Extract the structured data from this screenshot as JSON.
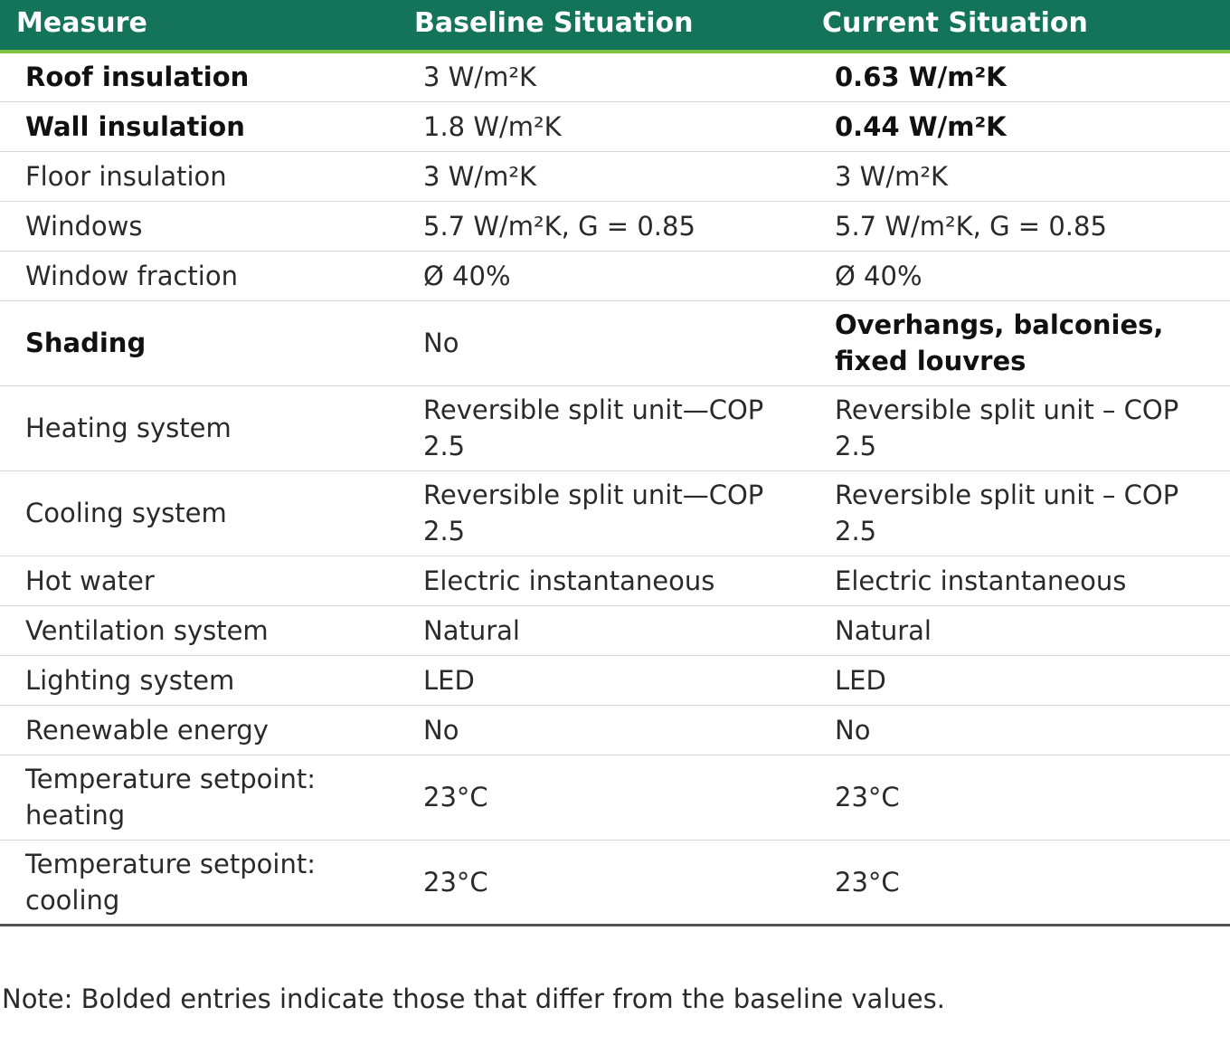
{
  "table": {
    "headers": {
      "measure": "Measure",
      "baseline": "Baseline Situation",
      "current": "Current Situation"
    },
    "rows": [
      {
        "measure": "Roof insulation",
        "baseline": "3 W/m²K",
        "current": "0.63 W/m²K",
        "bold": true
      },
      {
        "measure": "Wall insulation",
        "baseline": "1.8 W/m²K",
        "current": "0.44 W/m²K",
        "bold": true
      },
      {
        "measure": "Floor insulation",
        "baseline": "3 W/m²K",
        "current": "3 W/m²K",
        "bold": false
      },
      {
        "measure": "Windows",
        "baseline": "5.7 W/m²K, G = 0.85",
        "current": "5.7 W/m²K, G = 0.85",
        "bold": false
      },
      {
        "measure": "Window fraction",
        "baseline": "Ø 40%",
        "current": "Ø 40%",
        "bold": false
      },
      {
        "measure": "Shading",
        "baseline": "No",
        "current": "Overhangs, balconies, fixed louvres",
        "bold": true
      },
      {
        "measure": "Heating system",
        "baseline": "Reversible split unit—COP 2.5",
        "current": "Reversible split unit – COP 2.5",
        "bold": false
      },
      {
        "measure": "Cooling system",
        "baseline": "Reversible split unit—COP 2.5",
        "current": "Reversible split unit – COP 2.5",
        "bold": false
      },
      {
        "measure": "Hot water",
        "baseline": "Electric instantaneous",
        "current": "Electric instantaneous",
        "bold": false
      },
      {
        "measure": "Ventilation system",
        "baseline": "Natural",
        "current": "Natural",
        "bold": false
      },
      {
        "measure": "Lighting system",
        "baseline": "LED",
        "current": "LED",
        "bold": false
      },
      {
        "measure": "Renewable energy",
        "baseline": "No",
        "current": "No",
        "bold": false
      },
      {
        "measure": "Temperature setpoint: heating",
        "baseline": "23°C",
        "current": "23°C",
        "bold": false
      },
      {
        "measure": "Temperature setpoint: cooling",
        "baseline": "23°C",
        "current": "23°C",
        "bold": false
      }
    ]
  },
  "note": "Note: Bolded entries indicate those that differ from the baseline values.",
  "colors": {
    "header_bg": "#14745a",
    "header_accent": "#7dc242",
    "header_text": "#ffffff"
  }
}
